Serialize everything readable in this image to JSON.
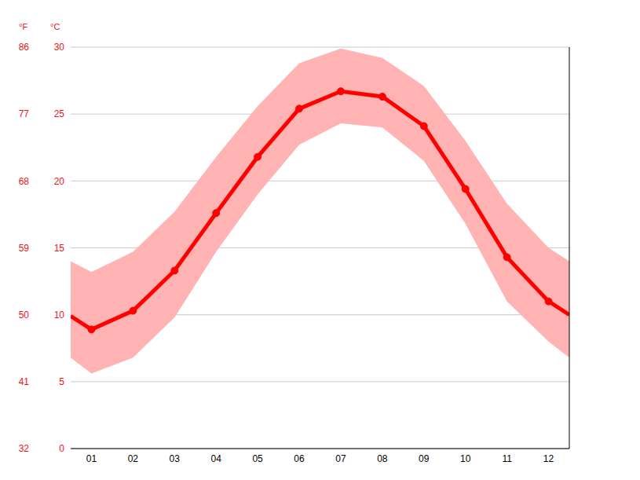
{
  "chart_data": {
    "type": "line",
    "ylabel": "°C",
    "y2label": "°F",
    "color": "#ff0000",
    "x": [
      0.5,
      1,
      2,
      3,
      4,
      5,
      6,
      7,
      8,
      9,
      10,
      11,
      12,
      12.5
    ],
    "values": [
      9.9,
      8.9,
      10.3,
      13.3,
      17.6,
      21.8,
      25.4,
      26.7,
      26.3,
      24.1,
      19.4,
      14.3,
      11.0,
      10.0
    ],
    "min": [
      6.8,
      5.6,
      6.8,
      9.8,
      14.7,
      19.0,
      22.7,
      24.3,
      24.0,
      21.5,
      16.8,
      11.0,
      8.0,
      6.8
    ],
    "max": [
      14.0,
      13.2,
      14.7,
      17.7,
      21.8,
      25.6,
      28.8,
      29.9,
      29.2,
      27.1,
      23.0,
      18.3,
      15.0,
      14.0
    ],
    "xlim": [
      0.5,
      12.5
    ],
    "xticks": [
      {
        "value": 1,
        "label": "01"
      },
      {
        "value": 2,
        "label": "02"
      },
      {
        "value": 3,
        "label": "03"
      },
      {
        "value": 4,
        "label": "04"
      },
      {
        "value": 5,
        "label": "05"
      },
      {
        "value": 6,
        "label": "06"
      },
      {
        "value": 7,
        "label": "07"
      },
      {
        "value": 8,
        "label": "08"
      },
      {
        "value": 9,
        "label": "09"
      },
      {
        "value": 10,
        "label": "10"
      },
      {
        "value": 11,
        "label": "11"
      },
      {
        "value": 12,
        "label": "12"
      }
    ],
    "ylim": [
      0,
      30
    ],
    "yticks": [
      0,
      5,
      10,
      15,
      20,
      25,
      30
    ],
    "y2lim": [
      32,
      86
    ],
    "y2ticks": [
      32,
      41,
      50,
      59,
      68,
      77,
      86
    ],
    "grid": true,
    "marker": "circle",
    "line_style": "solid"
  }
}
